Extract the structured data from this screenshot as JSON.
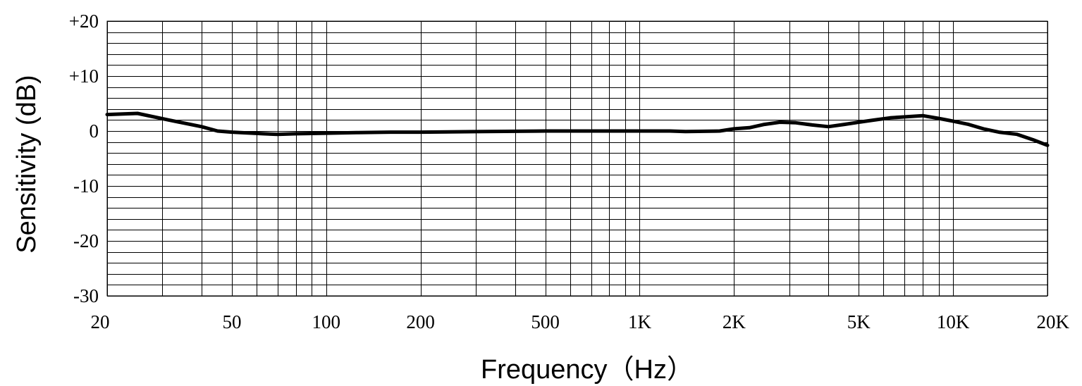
{
  "chart_data": {
    "type": "line",
    "title": "",
    "xlabel": "Frequency（Hz）",
    "ylabel": "Sensitivity (dB)",
    "xscale": "log",
    "xlim": [
      20,
      20000
    ],
    "ylim": [
      -30,
      20
    ],
    "grid": true,
    "x_ticks": [
      {
        "value": 20,
        "label": "20"
      },
      {
        "value": 50,
        "label": "50"
      },
      {
        "value": 100,
        "label": "100"
      },
      {
        "value": 200,
        "label": "200"
      },
      {
        "value": 500,
        "label": "500"
      },
      {
        "value": 1000,
        "label": "1K"
      },
      {
        "value": 2000,
        "label": "2K"
      },
      {
        "value": 5000,
        "label": "5K"
      },
      {
        "value": 10000,
        "label": "10K"
      },
      {
        "value": 20000,
        "label": "20K"
      }
    ],
    "y_ticks": [
      {
        "value": 20,
        "label": "+20"
      },
      {
        "value": 10,
        "label": "+10"
      },
      {
        "value": 0,
        "label": "0"
      },
      {
        "value": -10,
        "label": "-10"
      },
      {
        "value": -20,
        "label": "-20"
      },
      {
        "value": -30,
        "label": "-30"
      }
    ],
    "x_gridlines": [
      20,
      30,
      40,
      50,
      60,
      70,
      80,
      90,
      100,
      200,
      300,
      400,
      500,
      600,
      700,
      800,
      900,
      1000,
      2000,
      3000,
      4000,
      5000,
      6000,
      7000,
      8000,
      9000,
      10000,
      20000
    ],
    "y_grid_step": 2,
    "series": [
      {
        "name": "",
        "color": "#000000",
        "x": [
          20,
          25,
          31.5,
          40,
          45,
          50,
          63,
          70,
          80,
          100,
          125,
          160,
          200,
          315,
          500,
          800,
          1000,
          1250,
          1400,
          1800,
          2000,
          2240,
          2500,
          2800,
          3150,
          3550,
          4000,
          4500,
          5000,
          5600,
          6300,
          7100,
          8000,
          9000,
          10000,
          11200,
          12500,
          14000,
          16000,
          18000,
          20000
        ],
        "y": [
          3.0,
          3.2,
          2.0,
          0.8,
          0.0,
          -0.2,
          -0.5,
          -0.6,
          -0.5,
          -0.4,
          -0.3,
          -0.2,
          -0.2,
          -0.1,
          0.0,
          0.0,
          0.0,
          0.0,
          -0.1,
          0.0,
          0.4,
          0.6,
          1.2,
          1.6,
          1.5,
          1.1,
          0.8,
          1.2,
          1.6,
          2.0,
          2.4,
          2.6,
          2.8,
          2.3,
          1.8,
          1.2,
          0.4,
          -0.2,
          -0.6,
          -1.6,
          -2.6
        ]
      }
    ]
  }
}
